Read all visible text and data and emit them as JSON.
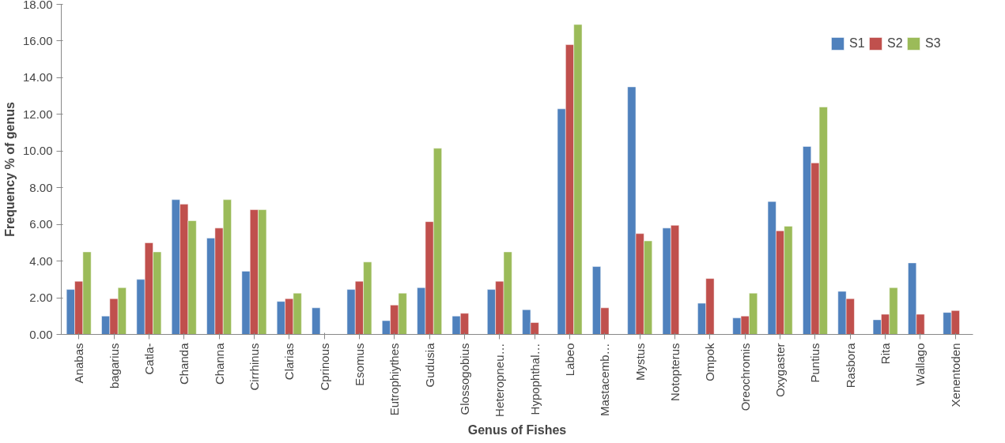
{
  "chart_data": {
    "type": "bar",
    "xlabel": "Genus of Fishes",
    "ylabel": "Frequency % of genus",
    "categories": [
      "Anabas",
      "bagarius",
      "Catla-",
      "Chanda",
      "Channa",
      "Cirrhinus",
      "Clarias",
      "Cprinous",
      "Esomus",
      "Eutrophiythes",
      "Gudusia",
      "Glossogobius",
      "Heteropneu…",
      "Hypophthal…",
      "Labeo",
      "Mastacemb…",
      "Mystus",
      "Notopterus",
      "Ompok",
      "Oreochromis",
      "Oxygaster",
      "Puntius",
      "Rasbora",
      "Rita",
      "Wallago",
      "Xenentoden"
    ],
    "series": [
      {
        "name": "S1",
        "color": "#4f81bd",
        "values": [
          2.45,
          1.0,
          3.0,
          7.35,
          5.25,
          3.45,
          1.8,
          1.45,
          2.45,
          0.75,
          2.55,
          1.0,
          2.45,
          1.35,
          12.3,
          3.7,
          13.5,
          5.8,
          1.7,
          0.9,
          7.25,
          10.25,
          2.35,
          0.8,
          3.9,
          1.2
        ]
      },
      {
        "name": "S2",
        "color": "#c0504d",
        "values": [
          2.9,
          1.95,
          5.0,
          7.1,
          5.8,
          6.8,
          1.95,
          null,
          2.9,
          1.6,
          6.15,
          1.15,
          2.9,
          0.65,
          15.8,
          1.45,
          5.5,
          5.95,
          3.05,
          1.0,
          5.65,
          9.35,
          1.95,
          1.1,
          1.1,
          1.3
        ]
      },
      {
        "name": "S3",
        "color": "#9bbb59",
        "values": [
          4.5,
          2.55,
          4.5,
          6.2,
          7.35,
          6.8,
          2.25,
          null,
          3.95,
          2.25,
          10.15,
          null,
          4.5,
          null,
          16.9,
          null,
          5.1,
          null,
          null,
          2.25,
          5.9,
          12.4,
          null,
          2.55,
          null,
          null
        ]
      }
    ],
    "ylim": [
      0,
      18
    ],
    "yticks": [
      {
        "value": 0,
        "label": "0.00"
      },
      {
        "value": 2,
        "label": "2.00"
      },
      {
        "value": 4,
        "label": "4.00"
      },
      {
        "value": 6,
        "label": "6.00"
      },
      {
        "value": 8,
        "label": "8.00"
      },
      {
        "value": 10,
        "label": "10.00"
      },
      {
        "value": 12,
        "label": "12.00"
      },
      {
        "value": 14,
        "label": "14.00"
      },
      {
        "value": 16,
        "label": "16.00"
      },
      {
        "value": 18,
        "label": "18.00"
      }
    ],
    "grid": false,
    "legend": "top right"
  }
}
